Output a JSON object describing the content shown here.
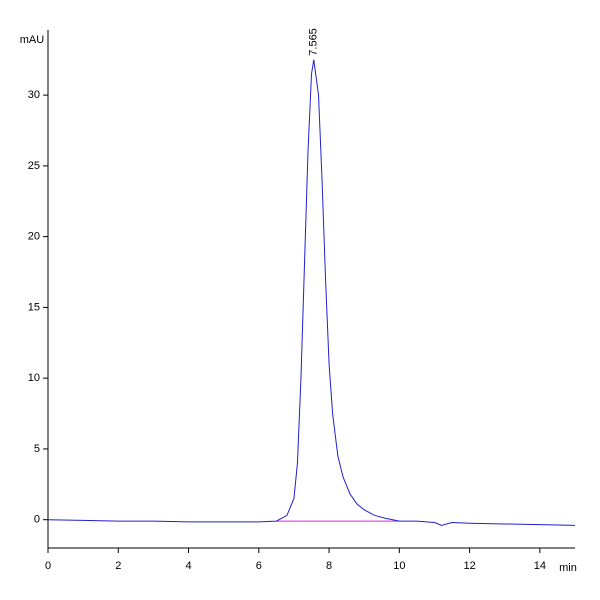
{
  "chart_data": {
    "type": "line",
    "ylabel": "mAU",
    "xlabel": "min",
    "x": [
      0,
      1,
      2,
      3,
      4,
      5,
      6,
      6.5,
      6.8,
      7.0,
      7.1,
      7.2,
      7.3,
      7.4,
      7.5,
      7.565,
      7.7,
      7.8,
      7.9,
      8.0,
      8.1,
      8.25,
      8.4,
      8.6,
      8.8,
      9.0,
      9.3,
      9.6,
      10,
      10.5,
      11,
      11.2,
      11.5,
      12,
      13,
      14,
      15
    ],
    "series": [
      {
        "color": "#2020d0",
        "values": [
          0,
          -0.05,
          -0.1,
          -0.1,
          -0.15,
          -0.15,
          -0.15,
          -0.1,
          0.3,
          1.5,
          4,
          10,
          18,
          26,
          31.5,
          32.5,
          30,
          24,
          17,
          11,
          7.5,
          4.5,
          3,
          1.8,
          1.1,
          0.7,
          0.3,
          0.1,
          -0.1,
          -0.1,
          -0.2,
          -0.4,
          -0.2,
          -0.25,
          -0.3,
          -0.35,
          -0.4
        ]
      }
    ],
    "integration_baseline": {
      "x": [
        6.5,
        10
      ],
      "values": [
        -0.1,
        -0.1
      ],
      "color": "#e020e0"
    },
    "annotations": [
      {
        "label": "7.565",
        "x": 7.565,
        "y": 32.5
      }
    ],
    "xlim": [
      0,
      15
    ],
    "xticks": [
      0,
      2,
      4,
      6,
      8,
      10,
      12,
      14
    ],
    "ylim": [
      -2,
      34.6
    ],
    "yticks": [
      0,
      5,
      10,
      15,
      20,
      25,
      30
    ]
  }
}
